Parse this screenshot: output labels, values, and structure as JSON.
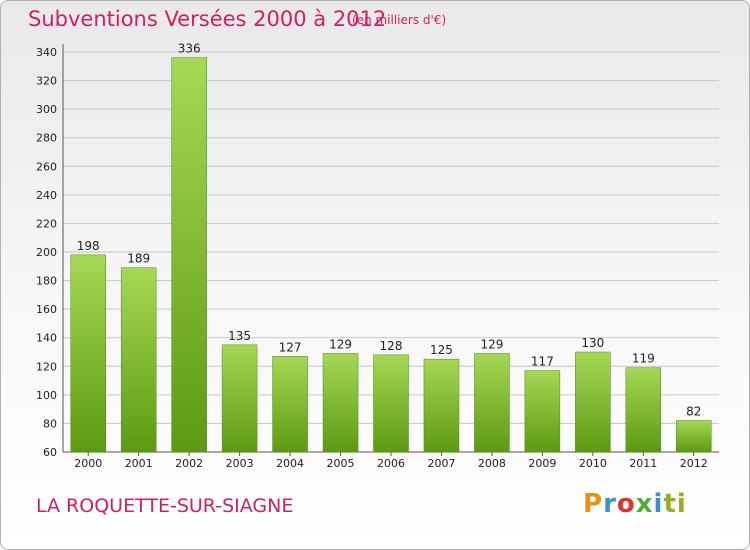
{
  "header": {
    "title": "Subventions Versées 2000 à 2012",
    "unit": "(en milliers d'€)"
  },
  "footer": {
    "town": "LA ROQUETTE-SUR-SIAGNE",
    "logo_letters": [
      "P",
      "r",
      "o",
      "x",
      "i",
      "t",
      "i"
    ]
  },
  "colors": {
    "accent": "#d02060",
    "bar_top": "#a6d855",
    "bar_bottom": "#5c9a12",
    "grid": "#c8c8c8",
    "axis_text": "#222222"
  },
  "chart_data": {
    "type": "bar",
    "title": "Subventions Versées 2000 à 2012",
    "ylabel": "(en milliers d'€)",
    "xlabel": "",
    "categories": [
      "2000",
      "2001",
      "2002",
      "2003",
      "2004",
      "2005",
      "2006",
      "2007",
      "2008",
      "2009",
      "2010",
      "2011",
      "2012"
    ],
    "values": [
      198,
      189,
      336,
      135,
      127,
      129,
      128,
      125,
      129,
      117,
      130,
      119,
      82
    ],
    "ylim": [
      60,
      340
    ],
    "yticks": [
      60,
      80,
      100,
      120,
      140,
      160,
      180,
      200,
      220,
      240,
      260,
      280,
      300,
      320,
      340
    ],
    "grid": true
  }
}
